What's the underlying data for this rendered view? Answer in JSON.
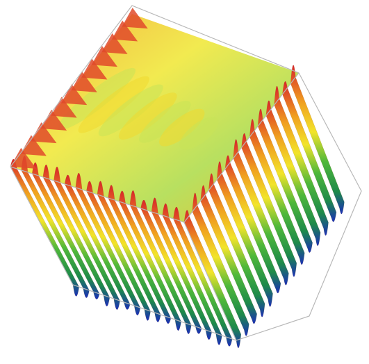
{
  "chart_data": {
    "type": "surface"
  }
}
